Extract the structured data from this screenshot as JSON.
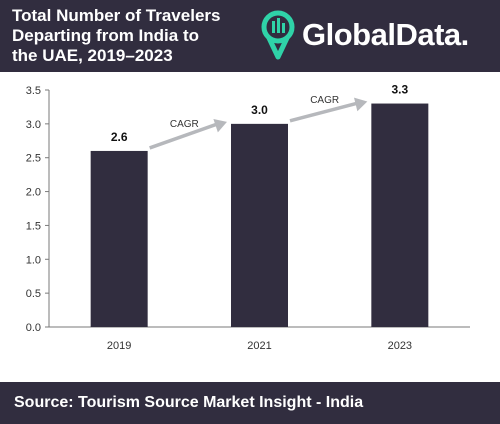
{
  "header": {
    "title_lines": [
      "Total Number of Travelers",
      "Departing from India to",
      "the UAE, 2019–2023"
    ],
    "logo_text": "GlobalData."
  },
  "footer": {
    "source": "Source: Tourism Source Market Insight - India"
  },
  "colors": {
    "header_bg": "#312d3f",
    "bar": "#312d3f",
    "accent": "#2fd3a8",
    "arrow": "#b6b8bc",
    "axis_text": "#333333"
  },
  "chart_data": {
    "type": "bar",
    "title": "Total Number of Travelers Departing from India to the UAE, 2019–2023",
    "categories": [
      "2019",
      "2021",
      "2023"
    ],
    "values": [
      2.6,
      3.0,
      3.3
    ],
    "value_labels": [
      "2.6",
      "3.0",
      "3.3"
    ],
    "ylim": [
      0,
      3.5
    ],
    "yticks": [
      "0.0",
      "0.5",
      "1.0",
      "1.5",
      "2.0",
      "2.5",
      "3.0",
      "3.5"
    ],
    "annotations": [
      "CAGR",
      "CAGR"
    ],
    "grid": false,
    "xlabel": "",
    "ylabel": ""
  }
}
